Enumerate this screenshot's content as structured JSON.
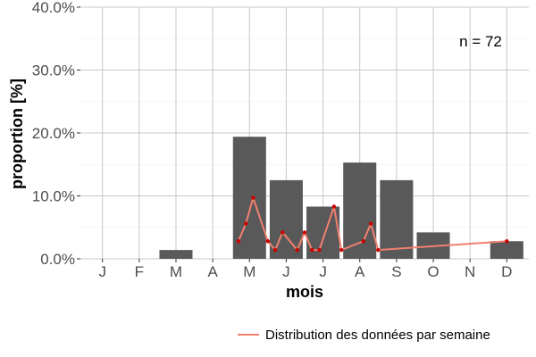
{
  "chart_data": {
    "type": "bar",
    "title": "",
    "xlabel": "mois",
    "ylabel": "proportion [%]",
    "annotation": "n = 72",
    "categories": [
      "J",
      "F",
      "M",
      "A",
      "M",
      "J",
      "J",
      "A",
      "S",
      "O",
      "N",
      "D"
    ],
    "ylim": [
      0,
      40
    ],
    "yticks": [
      "0.0%",
      "10.0%",
      "20.0%",
      "30.0%",
      "40.0%"
    ],
    "grid": true,
    "legend_position": "bottom-right",
    "series": [
      {
        "kind": "bar",
        "values": [
          0,
          0,
          1.4,
          0,
          19.4,
          12.5,
          8.3,
          15.3,
          12.5,
          4.2,
          0,
          2.8
        ],
        "color": "#595959"
      },
      {
        "kind": "line",
        "name": "Distribution des données par semaine",
        "color": "#f08070",
        "point_color": "#cc0000",
        "points": [
          {
            "x": 4.7,
            "y": 2.8
          },
          {
            "x": 4.9,
            "y": 5.6
          },
          {
            "x": 5.1,
            "y": 9.7
          },
          {
            "x": 5.5,
            "y": 2.8
          },
          {
            "x": 5.7,
            "y": 1.4
          },
          {
            "x": 5.9,
            "y": 4.2
          },
          {
            "x": 6.3,
            "y": 1.4
          },
          {
            "x": 6.5,
            "y": 4.2
          },
          {
            "x": 6.7,
            "y": 1.4
          },
          {
            "x": 6.9,
            "y": 1.4
          },
          {
            "x": 7.3,
            "y": 8.3
          },
          {
            "x": 7.5,
            "y": 1.4
          },
          {
            "x": 8.1,
            "y": 2.8
          },
          {
            "x": 8.3,
            "y": 5.6
          },
          {
            "x": 8.5,
            "y": 1.4
          },
          {
            "x": 12.0,
            "y": 2.8
          }
        ]
      }
    ]
  }
}
